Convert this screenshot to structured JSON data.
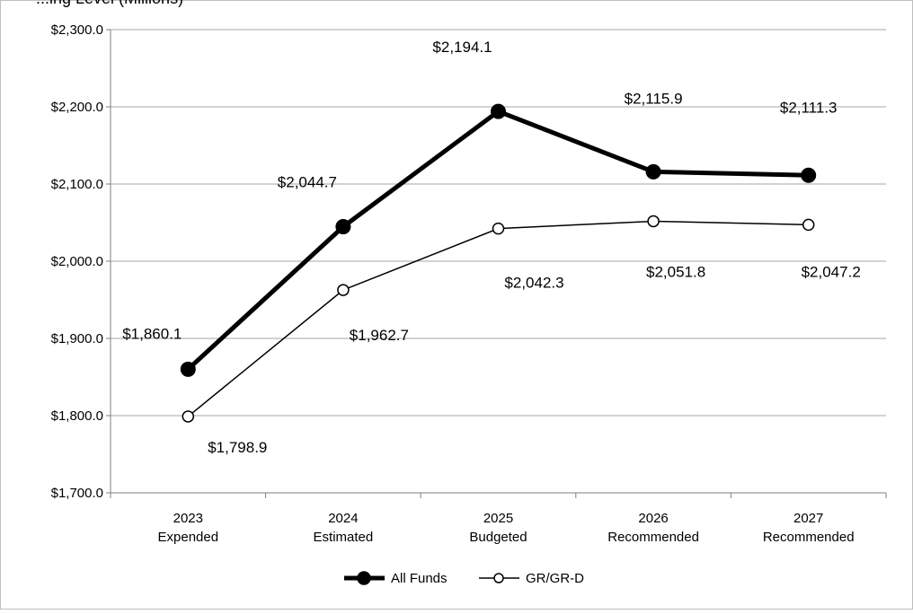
{
  "chart_data": {
    "type": "line",
    "title": "...ing Level (Millions)",
    "categories": [
      [
        "2023",
        "Expended"
      ],
      [
        "2024",
        "Estimated"
      ],
      [
        "2025",
        "Budgeted"
      ],
      [
        "2026",
        "Recommended"
      ],
      [
        "2027",
        "Recommended"
      ]
    ],
    "series": [
      {
        "name": "All Funds",
        "values": [
          1860.1,
          2044.7,
          2194.1,
          2115.9,
          2111.3
        ],
        "labels": [
          "$1,860.1",
          "$2,044.7",
          "$2,194.1",
          "$2,115.9",
          "$2,111.3"
        ],
        "style": "thick-filled"
      },
      {
        "name": "GR/GR-D",
        "values": [
          1798.9,
          1962.7,
          2042.3,
          2051.8,
          2047.2
        ],
        "labels": [
          "$1,798.9",
          "$1,962.7",
          "$2,042.3",
          "$2,051.8",
          "$2,047.2"
        ],
        "style": "thin-open"
      }
    ],
    "ylim": [
      1700,
      2300
    ],
    "yticks": [
      1700,
      1800,
      1900,
      2000,
      2100,
      2200,
      2300
    ],
    "ytick_labels": [
      "$1,700.0",
      "$1,800.0",
      "$1,900.0",
      "$2,000.0",
      "$2,100.0",
      "$2,200.0",
      "$2,300.0"
    ],
    "grid": true,
    "legend": "bottom-center",
    "colors": {
      "line": "#000000",
      "grid": "#a6a6a6",
      "frame": "#bfbfbf"
    }
  }
}
